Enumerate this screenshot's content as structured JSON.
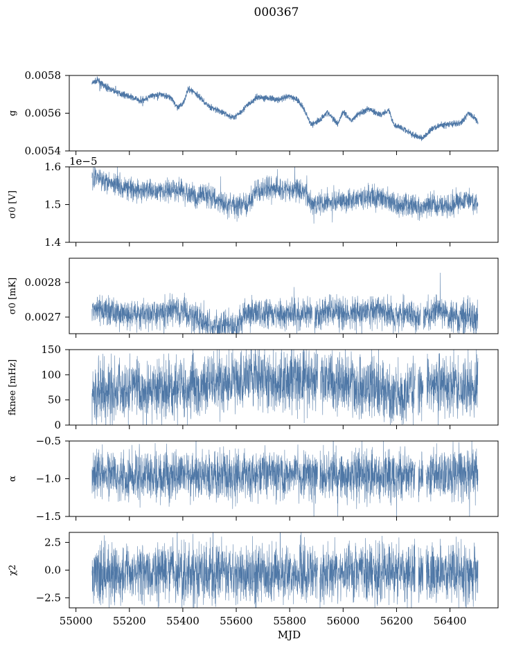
{
  "figure_title": "000367",
  "chart_data": [
    {
      "type": "line",
      "ylabel": "g",
      "ylim": [
        0.0054,
        0.0058
      ],
      "yticks": [
        0.0054,
        0.0056,
        0.0058
      ],
      "ytick_labels": [
        "0.0054",
        "0.0056",
        "0.0058"
      ],
      "series": [
        {
          "x": [
            55060,
            55080,
            55110,
            55150,
            55200,
            55240,
            55280,
            55320,
            55360,
            55380,
            55400,
            55420,
            55440,
            55470,
            55490,
            55520,
            55560,
            55580,
            55600,
            55640,
            55680,
            55720,
            55760,
            55800,
            55830,
            55850,
            55880,
            55910,
            55940,
            55980,
            56000,
            56030,
            56060,
            56100,
            56140,
            56170,
            56190,
            56210,
            56240,
            56270,
            56300,
            56330,
            56360,
            56400,
            56440,
            56470,
            56490,
            56505
          ],
          "y": [
            0.005757,
            0.005775,
            0.00574,
            0.005712,
            0.00569,
            0.005665,
            0.00569,
            0.0057,
            0.00568,
            0.005625,
            0.00565,
            0.005725,
            0.005715,
            0.005675,
            0.005645,
            0.00562,
            0.005598,
            0.005578,
            0.005585,
            0.00564,
            0.005685,
            0.00568,
            0.00567,
            0.00569,
            0.00567,
            0.00563,
            0.00554,
            0.00556,
            0.005605,
            0.005545,
            0.00561,
            0.00556,
            0.0056,
            0.00562,
            0.00559,
            0.00562,
            0.00554,
            0.005528,
            0.005505,
            0.005478,
            0.005468,
            0.005515,
            0.005535,
            0.00554,
            0.005548,
            0.0056,
            0.00558,
            0.005555
          ],
          "noise": 8e-06,
          "gaps": []
        }
      ]
    },
    {
      "type": "line",
      "ylabel": "σ0 [V]",
      "offset_text": "1e−5",
      "ylim": [
        1.4e-05,
        1.6e-05
      ],
      "yticks": [
        1.4e-05,
        1.5e-05,
        1.6e-05
      ],
      "ytick_labels": [
        "1.4",
        "1.5",
        "1.6"
      ],
      "series": [
        {
          "x": [
            55060,
            55100,
            55150,
            55200,
            55250,
            55300,
            55350,
            55400,
            55450,
            55500,
            55550,
            55600,
            55640,
            55680,
            55720,
            55780,
            55820,
            55860,
            55880,
            55920,
            55960,
            56000,
            56050,
            56100,
            56150,
            56200,
            56240,
            56270,
            56290,
            56310,
            56340,
            56380,
            56420,
            56460,
            56505
          ],
          "y": [
            1.574e-05,
            1.568e-05,
            1.555e-05,
            1.54e-05,
            1.535e-05,
            1.54e-05,
            1.538e-05,
            1.533e-05,
            1.52e-05,
            1.53e-05,
            1.5e-05,
            1.495e-05,
            1.502e-05,
            1.535e-05,
            1.54e-05,
            1.54e-05,
            1.54e-05,
            1.53e-05,
            1.505e-05,
            1.505e-05,
            1.505e-05,
            1.51e-05,
            1.515e-05,
            1.52e-05,
            1.515e-05,
            1.5e-05,
            1.5e-05,
            1.5e-05,
            1.485e-05,
            1.5e-05,
            1.5e-05,
            1.5e-05,
            1.505e-05,
            1.515e-05,
            1.505e-05
          ],
          "noise": 1.5e-07,
          "gaps": []
        }
      ]
    },
    {
      "type": "line",
      "ylabel": "σ0 [mK]",
      "ylim": [
        0.002652,
        0.00287
      ],
      "yticks": [
        0.0027,
        0.0028
      ],
      "ytick_labels": [
        "0.0027",
        "0.0028"
      ],
      "series": [
        {
          "x": [
            55060,
            55200,
            55300,
            55400,
            55440,
            55480,
            55520,
            55560,
            55600,
            55620,
            55660,
            55700,
            55780,
            55880,
            55900,
            55950,
            56000,
            56100,
            56200,
            56300,
            56350,
            56400,
            56505
          ],
          "y": [
            0.00272,
            0.00271,
            0.00271,
            0.00272,
            0.0027,
            0.00269,
            0.00267,
            0.00268,
            0.00266,
            0.0027,
            0.00272,
            0.00271,
            0.00271,
            0.00271,
            0.0027,
            0.00272,
            0.00271,
            0.00272,
            0.00271,
            0.0027,
            0.00272,
            0.0027,
            0.0027
          ],
          "noise": 2.2e-05,
          "gaps": [
            [
              55885,
              55893
            ],
            [
              56290,
              56300
            ]
          ]
        }
      ]
    },
    {
      "type": "line",
      "ylabel": "fknee [mHz]",
      "ylim": [
        0,
        150
      ],
      "yticks": [
        0,
        50,
        100,
        150
      ],
      "ytick_labels": [
        "0",
        "50",
        "100",
        "150"
      ],
      "series": [
        {
          "x": [
            55060,
            55200,
            55300,
            55400,
            55500,
            55580,
            55620,
            55700,
            55800,
            55900,
            56000,
            56100,
            56180,
            56230,
            56260,
            56300,
            56330,
            56400,
            56505
          ],
          "y": [
            70,
            70,
            72,
            75,
            80,
            85,
            95,
            90,
            88,
            90,
            80,
            78,
            65,
            60,
            70,
            75,
            85,
            80,
            75
          ],
          "noise": 30,
          "gaps": [
            [
              55905,
              55915
            ],
            [
              56270,
              56280
            ],
            [
              56300,
              56312
            ]
          ]
        }
      ]
    },
    {
      "type": "line",
      "ylabel": "α",
      "ylim": [
        -1.5,
        -0.5
      ],
      "yticks": [
        -1.5,
        -1.0,
        -0.5
      ],
      "ytick_labels": [
        "−1.5",
        "−1.0",
        "−0.5"
      ],
      "series": [
        {
          "x": [
            55060,
            55200,
            55300,
            55400,
            55500,
            55600,
            55700,
            55800,
            55900,
            56000,
            56100,
            56200,
            56300,
            56400,
            56505
          ],
          "y": [
            -0.93,
            -0.95,
            -0.96,
            -0.95,
            -0.97,
            -0.96,
            -0.95,
            -0.94,
            -0.95,
            -0.96,
            -0.95,
            -0.94,
            -0.95,
            -0.94,
            -0.95
          ],
          "noise": 0.16,
          "gaps": [
            [
              55905,
              55912
            ],
            [
              56270,
              56282
            ],
            [
              56300,
              56310
            ]
          ]
        }
      ]
    },
    {
      "type": "line",
      "ylabel": "χ2",
      "xlabel": "MJD",
      "xticks": [
        55000,
        55200,
        55400,
        55600,
        55800,
        56000,
        56200,
        56400
      ],
      "xtick_labels": [
        "55000",
        "55200",
        "55400",
        "55600",
        "55800",
        "56000",
        "56200",
        "56400"
      ],
      "ylim": [
        -3.4,
        3.4
      ],
      "yticks": [
        -2.5,
        0.0,
        2.5
      ],
      "ytick_labels": [
        "−2.5",
        "0.0",
        "2.5"
      ],
      "series": [
        {
          "x": [
            55060,
            55300,
            55600,
            55900,
            56200,
            56505
          ],
          "y": [
            -0.2,
            -0.2,
            -0.2,
            -0.2,
            -0.2,
            -0.2
          ],
          "noise": 1.3,
          "gaps": [
            [
              55905,
              55912
            ],
            [
              56270,
              56282
            ],
            [
              56300,
              56310
            ]
          ]
        }
      ]
    }
  ],
  "xlim": [
    54975,
    56580
  ],
  "line_color": "#4e77a6"
}
